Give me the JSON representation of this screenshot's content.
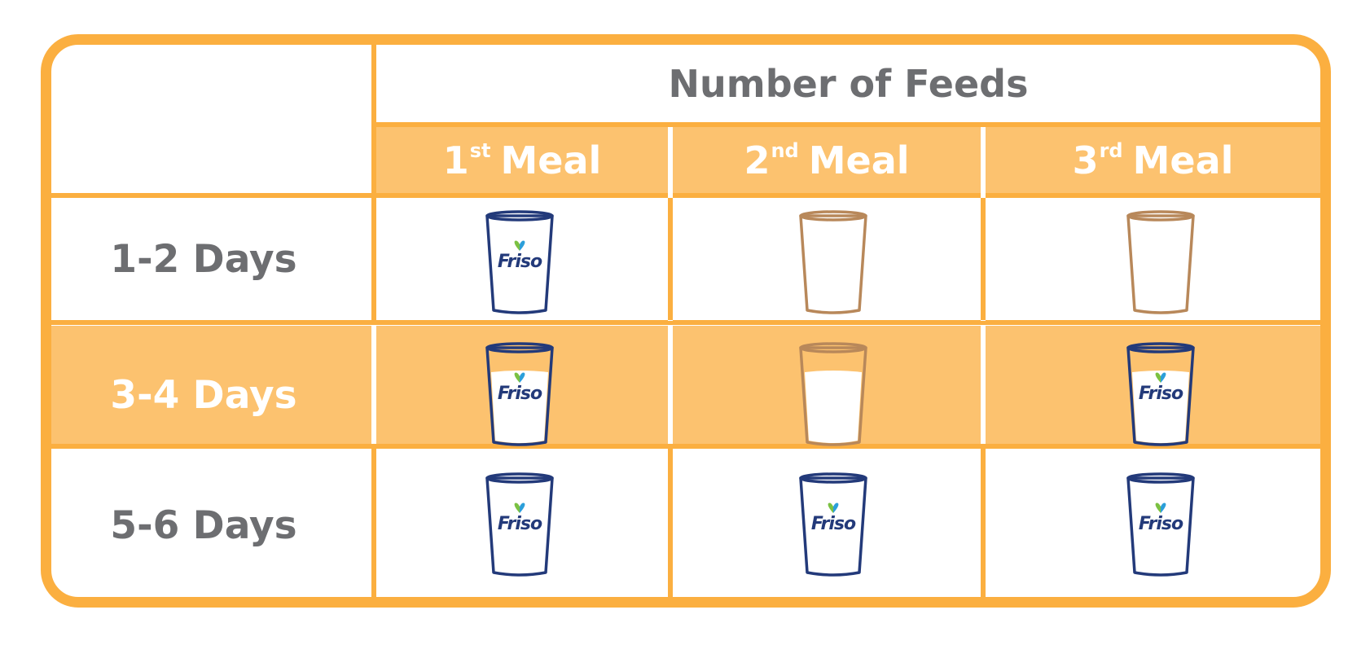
{
  "colors": {
    "border": "#FBAF40",
    "band": "#FCC26F",
    "header_text": "#6D6E71",
    "cup_friso": "#233A7A",
    "cup_plain": "#B8885A",
    "milk": "#ffffff",
    "logo_green": "#7BC142",
    "logo_blue": "#2C9FD9"
  },
  "table": {
    "header": "Number of Feeds",
    "meals": [
      {
        "num": "1",
        "suffix": "st",
        "word": "Meal"
      },
      {
        "num": "2",
        "suffix": "nd",
        "word": "Meal"
      },
      {
        "num": "3",
        "suffix": "rd",
        "word": "Meal"
      }
    ],
    "rows": [
      {
        "label": "1-2 Days",
        "cups": [
          {
            "type": "friso",
            "milk": false
          },
          {
            "type": "plain",
            "milk": false
          },
          {
            "type": "plain",
            "milk": false
          }
        ]
      },
      {
        "label": "3-4 Days",
        "cups": [
          {
            "type": "friso",
            "milk": true
          },
          {
            "type": "plain",
            "milk": true
          },
          {
            "type": "friso",
            "milk": true
          }
        ]
      },
      {
        "label": "5-6 Days",
        "cups": [
          {
            "type": "friso",
            "milk": false
          },
          {
            "type": "friso",
            "milk": false
          },
          {
            "type": "friso",
            "milk": false
          }
        ]
      }
    ],
    "brand": "Friso"
  }
}
